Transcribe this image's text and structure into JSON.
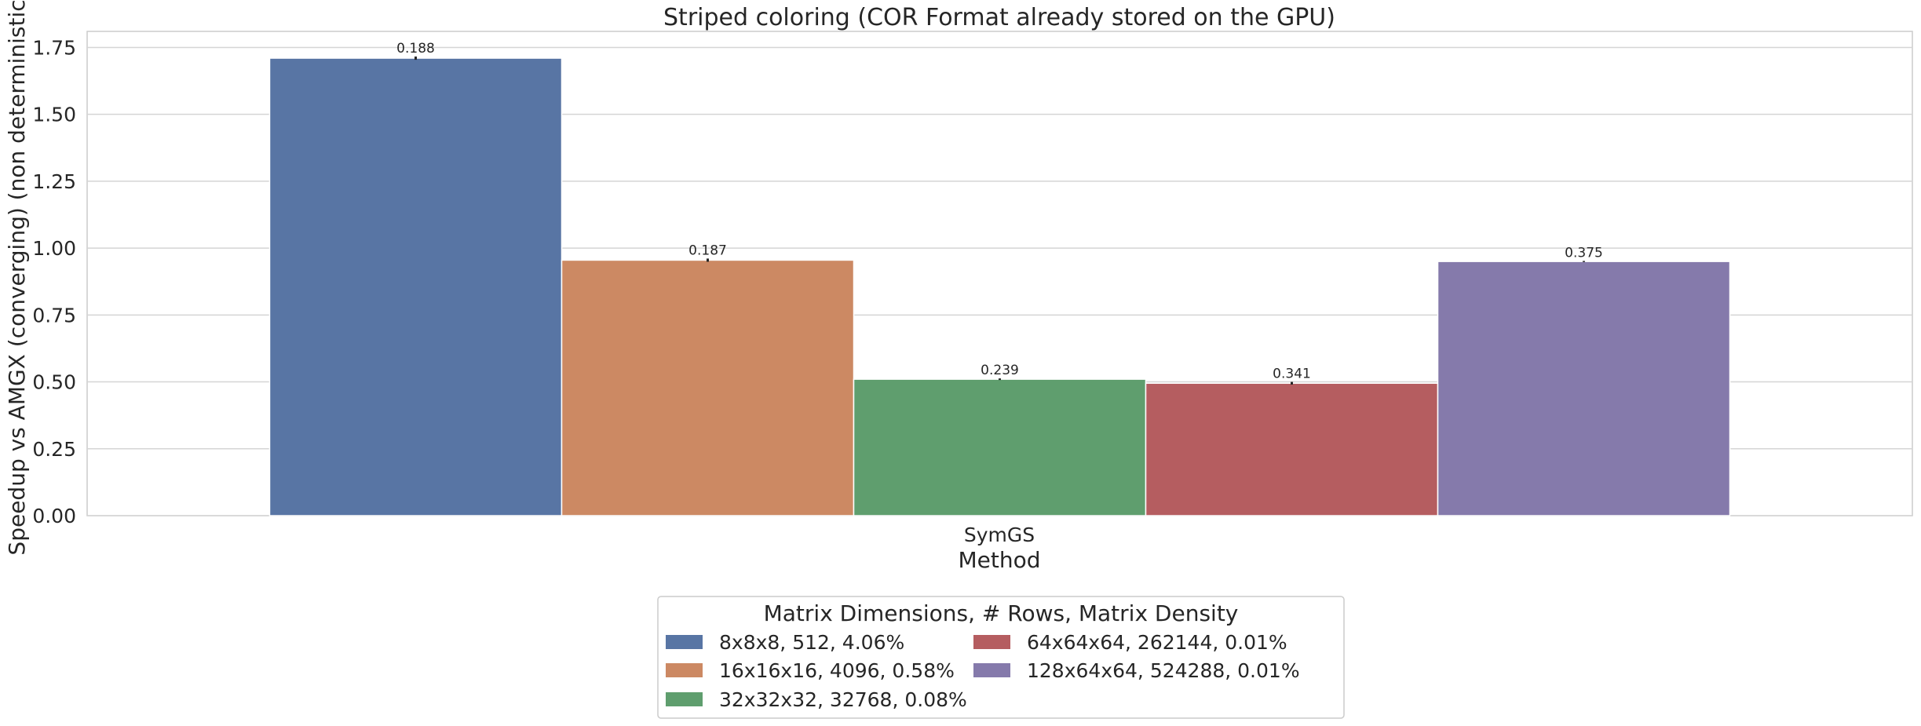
{
  "chart_data": {
    "type": "bar",
    "title": "Striped coloring (COR Format already stored on the GPU)",
    "xlabel": "Method",
    "ylabel": "Speedup vs AMGX (converging) (non deterministic)",
    "categories": [
      "SymGS"
    ],
    "ylim": [
      0,
      1.81
    ],
    "yticks": [
      "0.00",
      "0.25",
      "0.50",
      "0.75",
      "1.00",
      "1.25",
      "1.50",
      "1.75"
    ],
    "grid": true,
    "legend_position": "lower center",
    "legend_title": "Matrix Dimensions, # Rows, Matrix Density",
    "series": [
      {
        "name": "8x8x8, 512, 4.06%",
        "values": [
          1.71
        ],
        "error": [
          0.006
        ],
        "label": "0.188",
        "color": "#5875a4"
      },
      {
        "name": "16x16x16, 4096, 0.58%",
        "values": [
          0.955
        ],
        "error": [
          0.006
        ],
        "label": "0.187",
        "color": "#cc8963"
      },
      {
        "name": "32x32x32, 32768, 0.08%",
        "values": [
          0.51
        ],
        "error": [
          0.003
        ],
        "label": "0.239",
        "color": "#5f9e6e"
      },
      {
        "name": "64x64x64, 262144, 0.01%",
        "values": [
          0.495
        ],
        "error": [
          0.005
        ],
        "label": "0.341",
        "color": "#b55d60"
      },
      {
        "name": "128x64x64, 524288, 0.01%",
        "values": [
          0.95
        ],
        "error": [
          0.002
        ],
        "label": "0.375",
        "color": "#857aab"
      }
    ]
  }
}
